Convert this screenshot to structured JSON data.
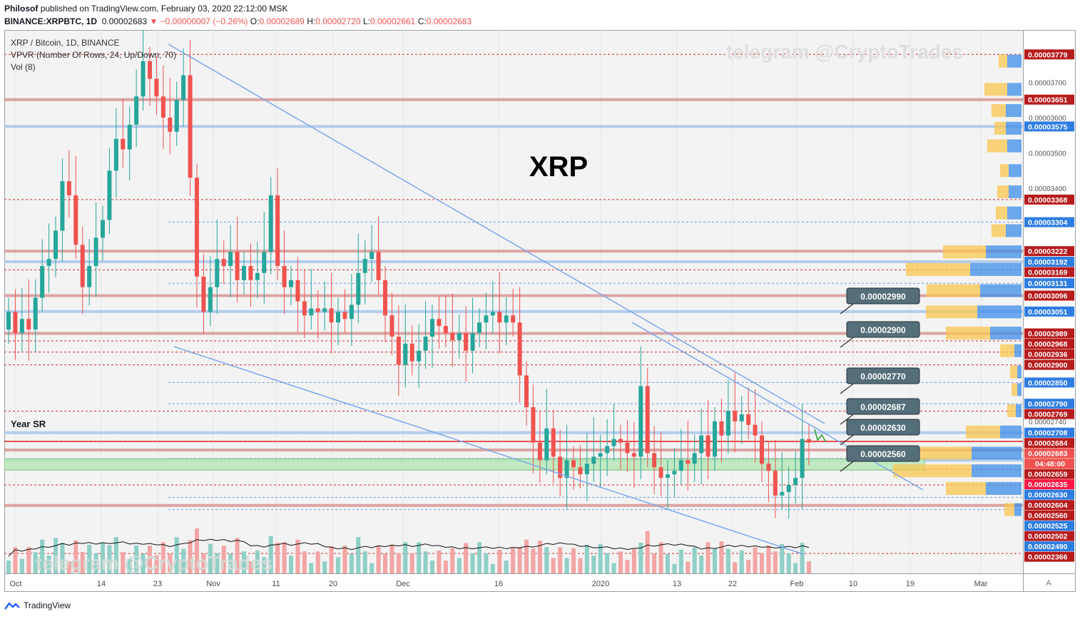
{
  "header": {
    "author": "Philosof",
    "published_text": "published on TradingView.com, February 03, 2020 22:12:00 MSK",
    "symbol": "BINANCE:XRPBTC, 1D",
    "price": "0.00002683",
    "change": "▼ −0.00000007 (−0.26%)",
    "o_label": "O:",
    "o_value": "0.00002689",
    "h_label": "H:",
    "h_value": "0.00002720",
    "l_label": "L:",
    "l_value": "0.00002661",
    "c_label": "C:",
    "c_value": "0.00002683"
  },
  "legend": {
    "line1": "XRP / Bitcoin, 1D, BINANCE",
    "line2": "VPVR (Number Of Rows, 24, Up/Down, 70)",
    "line3": "Vol (8)"
  },
  "annotations": {
    "big_title": "XRP",
    "year_sr": "Year SR",
    "watermark_top": "telegram @CryptoTrades",
    "watermark_bottom": "telegram @CryptoTrades",
    "corner_label": "A"
  },
  "footer": {
    "brand": "TradingView"
  },
  "colors": {
    "up": "#26a69a",
    "down": "#ef5350",
    "red_level": "#c62828",
    "blue_level": "#90b8e8",
    "trendline": "#7ea8ea",
    "accent_blue": "#2962ff"
  },
  "chart_data": {
    "type": "candlestick",
    "title": "XRP / Bitcoin, 1D, BINANCE",
    "x_ticks": [
      "Oct",
      "14",
      "23",
      "Nov",
      "11",
      "20",
      "Dec",
      "16",
      "2020",
      "13",
      "22",
      "Feb",
      "10",
      "19",
      "Mar"
    ],
    "y_range": [
      2.35e-05,
      3.82e-05
    ],
    "y_ticks": [
      "0.00003700",
      "0.00003600",
      "0.00003500",
      "0.00003400",
      "0.00002740"
    ],
    "price_level_labels": [
      {
        "value": "0.00003779",
        "kind": "red"
      },
      {
        "value": "0.00003651",
        "kind": "red"
      },
      {
        "value": "0.00003575",
        "kind": "blue"
      },
      {
        "value": "0.00003368",
        "kind": "red"
      },
      {
        "value": "0.00003304",
        "kind": "blue"
      },
      {
        "value": "0.00003222",
        "kind": "red"
      },
      {
        "value": "0.00003192",
        "kind": "blue"
      },
      {
        "value": "0.00003169",
        "kind": "red"
      },
      {
        "value": "0.00003131",
        "kind": "blue"
      },
      {
        "value": "0.00003096",
        "kind": "red"
      },
      {
        "value": "0.00003051",
        "kind": "blue"
      },
      {
        "value": "0.00002989",
        "kind": "red"
      },
      {
        "value": "0.00002968",
        "kind": "red"
      },
      {
        "value": "0.00002936",
        "kind": "red"
      },
      {
        "value": "0.00002900",
        "kind": "red"
      },
      {
        "value": "0.00002850",
        "kind": "blue"
      },
      {
        "value": "0.00002790",
        "kind": "blue"
      },
      {
        "value": "0.00002769",
        "kind": "red"
      },
      {
        "value": "0.00002708",
        "kind": "blue"
      },
      {
        "value": "0.00002684",
        "kind": "red"
      },
      {
        "value": "0.00002683",
        "kind": "current"
      },
      {
        "value": "04:48:00",
        "kind": "timer"
      },
      {
        "value": "0.00002659",
        "kind": "red"
      },
      {
        "value": "0.00002635",
        "kind": "bright"
      },
      {
        "value": "0.00002630",
        "kind": "blue"
      },
      {
        "value": "0.00002604",
        "kind": "red"
      },
      {
        "value": "0.00002560",
        "kind": "red"
      },
      {
        "value": "0.00002525",
        "kind": "blue"
      },
      {
        "value": "0.00002502",
        "kind": "red"
      },
      {
        "value": "0.00002490",
        "kind": "blue"
      },
      {
        "value": "0.00002366",
        "kind": "red"
      }
    ],
    "callouts": [
      "0.00002990",
      "0.00002900",
      "0.00002770",
      "0.00002687",
      "0.00002630",
      "0.00002560"
    ],
    "closes": [
      3.05e-05,
      2.99e-05,
      3.03e-05,
      3e-05,
      3.09e-05,
      3.18e-05,
      3.2e-05,
      3.28e-05,
      3.42e-05,
      3.38e-05,
      3.24e-05,
      3.12e-05,
      3.18e-05,
      3.26e-05,
      3.31e-05,
      3.45e-05,
      3.54e-05,
      3.51e-05,
      3.58e-05,
      3.66e-05,
      3.76e-05,
      3.71e-05,
      3.66e-05,
      3.6e-05,
      3.56e-05,
      3.65e-05,
      3.72e-05,
      3.43e-05,
      3.15e-05,
      3.05e-05,
      3.12e-05,
      3.2e-05,
      3.18e-05,
      3.22e-05,
      3.14e-05,
      3.18e-05,
      3.14e-05,
      3.16e-05,
      3.22e-05,
      3.38e-05,
      3.18e-05,
      3.12e-05,
      3.14e-05,
      3.08e-05,
      3.04e-05,
      3.06e-05,
      3.05e-05,
      3.06e-05,
      3.02e-05,
      3.05e-05,
      3.03e-05,
      3.07e-05,
      3.16e-05,
      3.2e-05,
      3.22e-05,
      3.14e-05,
      3.04e-05,
      2.98e-05,
      2.9e-05,
      2.96e-05,
      2.91e-05,
      2.94e-05,
      2.98e-05,
      3.03e-05,
      3.01e-05,
      2.99e-05,
      2.97e-05,
      2.99e-05,
      2.94e-05,
      2.99e-05,
      3.02e-05,
      3.04e-05,
      3.05e-05,
      3.02e-05,
      3.04e-05,
      3.02e-05,
      2.87e-05,
      2.78e-05,
      2.68e-05,
      2.63e-05,
      2.72e-05,
      2.64e-05,
      2.58e-05,
      2.63e-05,
      2.61e-05,
      2.59e-05,
      2.62e-05,
      2.64e-05,
      2.65e-05,
      2.67e-05,
      2.69e-05,
      2.68e-05,
      2.65e-05,
      2.64e-05,
      2.84e-05,
      2.65e-05,
      2.61e-05,
      2.58e-05,
      2.59e-05,
      2.6e-05,
      2.63e-05,
      2.62e-05,
      2.65e-05,
      2.7e-05,
      2.64e-05,
      2.74e-05,
      2.7e-05,
      2.77e-05,
      2.74e-05,
      2.76e-05,
      2.73e-05,
      2.7e-05,
      2.62e-05,
      2.6e-05,
      2.53e-05,
      2.54e-05,
      2.56e-05,
      2.58e-05,
      2.69e-05,
      2.68e-05
    ]
  }
}
